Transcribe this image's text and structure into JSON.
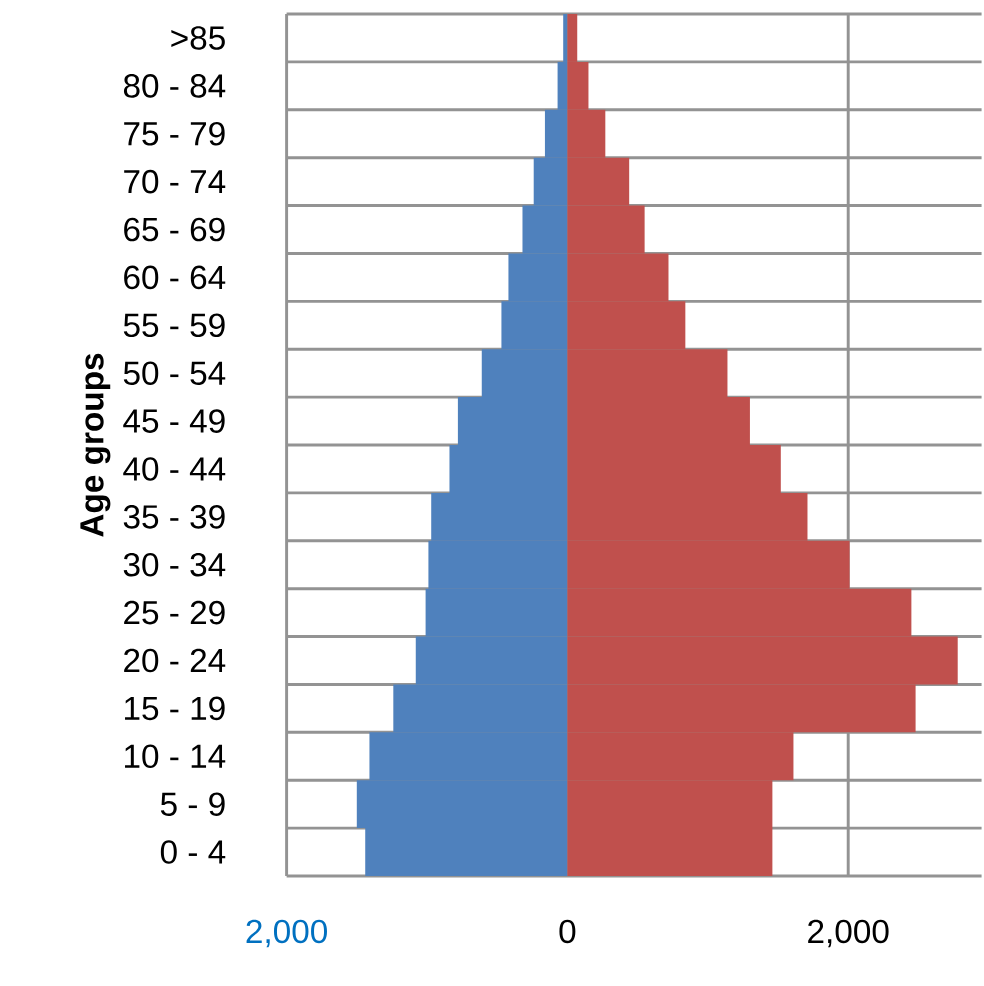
{
  "chart_data": {
    "type": "bar",
    "orientation": "horizontal",
    "stacked": true,
    "ylabel": "Age groups",
    "categories": [
      ">85",
      "80 - 84",
      "75 - 79",
      "70 - 74",
      "65 - 69",
      "60 - 64",
      "55 - 59",
      "50 - 54",
      "45 - 49",
      "40 - 44",
      "35 - 39",
      "30 - 34",
      "25 - 29",
      "20 - 24",
      "15 - 19",
      "10 - 14",
      "5 - 9",
      "0 - 4"
    ],
    "series": [
      {
        "color": "#4f81bd",
        "values": [
          -30,
          -70,
          -160,
          -240,
          -320,
          -420,
          -470,
          -610,
          -780,
          -840,
          -970,
          -990,
          -1010,
          -1080,
          -1240,
          -1410,
          -1500,
          -1440
        ]
      },
      {
        "color": "#c0504d",
        "values": [
          70,
          150,
          270,
          440,
          550,
          720,
          840,
          1140,
          1300,
          1520,
          1710,
          2010,
          2450,
          2780,
          2480,
          1610,
          1460,
          1460
        ]
      }
    ],
    "xlim": [
      -2000,
      2950
    ],
    "xticks": [
      {
        "value": -2000,
        "label": "2,000"
      },
      0,
      {
        "value": 2000,
        "label": "2,000"
      }
    ],
    "grid": true
  }
}
